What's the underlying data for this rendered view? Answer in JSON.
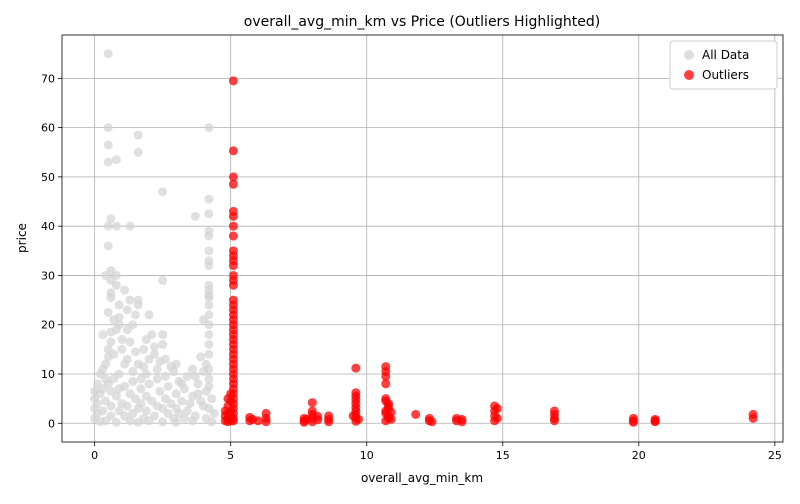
{
  "chart_data": {
    "type": "scatter",
    "title": "overall_avg_min_km vs Price (Outliers Highlighted)",
    "xlabel": "overall_avg_min_km",
    "ylabel": "price",
    "xlim": [
      -1.2,
      25.3
    ],
    "ylim": [
      -3.8,
      78.8
    ],
    "xticks": [
      0,
      5,
      10,
      15,
      20,
      25
    ],
    "yticks": [
      0,
      10,
      20,
      30,
      40,
      50,
      60,
      70
    ],
    "grid": true,
    "legend_position": "top-right",
    "series": [
      {
        "name": "All Data",
        "color": "#d3d3d3",
        "points": [
          [
            0.5,
            75
          ],
          [
            0.5,
            60
          ],
          [
            0.5,
            56.5
          ],
          [
            0.5,
            53
          ],
          [
            0.8,
            53.5
          ],
          [
            1.6,
            58.5
          ],
          [
            1.6,
            55
          ],
          [
            4.2,
            60
          ],
          [
            2.5,
            47
          ],
          [
            4.2,
            45.5
          ],
          [
            4.2,
            42.5
          ],
          [
            3.7,
            42
          ],
          [
            0.6,
            41.5
          ],
          [
            0.5,
            40
          ],
          [
            0.8,
            40
          ],
          [
            1.3,
            40
          ],
          [
            4.2,
            39
          ],
          [
            4.2,
            38
          ],
          [
            0.5,
            36
          ],
          [
            4.2,
            35
          ],
          [
            4.2,
            33
          ],
          [
            4.2,
            32
          ],
          [
            0.6,
            31
          ],
          [
            0.8,
            30
          ],
          [
            0.4,
            30
          ],
          [
            0.6,
            29
          ],
          [
            2.5,
            29
          ],
          [
            0.8,
            28
          ],
          [
            4.2,
            28
          ],
          [
            4.2,
            27
          ],
          [
            1.1,
            27
          ],
          [
            0.6,
            26.5
          ],
          [
            0.6,
            25.5
          ],
          [
            1.3,
            25
          ],
          [
            4.2,
            25.5
          ],
          [
            1.6,
            25
          ],
          [
            1.6,
            24
          ],
          [
            0.9,
            24
          ],
          [
            1.2,
            23
          ],
          [
            0.5,
            22.5
          ],
          [
            2.0,
            22
          ],
          [
            1.5,
            22
          ],
          [
            4.2,
            22
          ],
          [
            4.0,
            21
          ],
          [
            0.7,
            21
          ],
          [
            0.9,
            20
          ],
          [
            1.4,
            20
          ],
          [
            0.8,
            19
          ],
          [
            0.3,
            18
          ],
          [
            2.1,
            18
          ],
          [
            2.5,
            18
          ],
          [
            4.2,
            18
          ],
          [
            0.6,
            16.5
          ],
          [
            1.3,
            16.5
          ],
          [
            2.5,
            16
          ],
          [
            4.2,
            16
          ],
          [
            1.0,
            15
          ],
          [
            1.8,
            15
          ],
          [
            2.2,
            14
          ],
          [
            0.5,
            13.5
          ],
          [
            3.9,
            13.5
          ],
          [
            4.2,
            14
          ],
          [
            1.2,
            13
          ],
          [
            2.6,
            13
          ],
          [
            0.4,
            12
          ],
          [
            1.6,
            12
          ],
          [
            2.8,
            11.5
          ],
          [
            3.6,
            11
          ],
          [
            4.0,
            10.5
          ],
          [
            0.2,
            10
          ],
          [
            0.9,
            10
          ],
          [
            1.9,
            10
          ],
          [
            3.4,
            9.5
          ],
          [
            4.2,
            9
          ],
          [
            0.7,
            9
          ],
          [
            2.3,
            9
          ],
          [
            1.4,
            8.5
          ],
          [
            3.1,
            8.5
          ],
          [
            0.1,
            8
          ],
          [
            0.5,
            8
          ],
          [
            2.0,
            8
          ],
          [
            3.8,
            8
          ],
          [
            4.2,
            7.5
          ],
          [
            1.1,
            7.5
          ],
          [
            2.7,
            7.5
          ],
          [
            0.3,
            7
          ],
          [
            1.7,
            7
          ],
          [
            3.3,
            7
          ],
          [
            0.0,
            6.5
          ],
          [
            0.6,
            6.5
          ],
          [
            2.4,
            6.5
          ],
          [
            4.1,
            6.5
          ],
          [
            1.3,
            6
          ],
          [
            3.0,
            6
          ],
          [
            0.2,
            6
          ],
          [
            1.9,
            5.5
          ],
          [
            3.6,
            5.5
          ],
          [
            0.8,
            5.5
          ],
          [
            2.6,
            5
          ],
          [
            4.3,
            5
          ],
          [
            0.0,
            5
          ],
          [
            1.5,
            5
          ],
          [
            3.2,
            4.5
          ],
          [
            0.4,
            4.5
          ],
          [
            2.1,
            4.5
          ],
          [
            3.9,
            4.5
          ],
          [
            1.0,
            4
          ],
          [
            2.8,
            4
          ],
          [
            0.1,
            4
          ],
          [
            1.7,
            4
          ],
          [
            3.5,
            4
          ],
          [
            0.6,
            3.5
          ],
          [
            2.3,
            3.5
          ],
          [
            4.0,
            3.5
          ],
          [
            1.2,
            3.5
          ],
          [
            3.0,
            3
          ],
          [
            0.0,
            3
          ],
          [
            1.6,
            3
          ],
          [
            2.5,
            3
          ],
          [
            4.2,
            3
          ],
          [
            0.3,
            2.5
          ],
          [
            1.9,
            2.5
          ],
          [
            3.4,
            2.5
          ],
          [
            0.9,
            2.5
          ],
          [
            2.7,
            2
          ],
          [
            4.4,
            2
          ],
          [
            0.1,
            2
          ],
          [
            1.4,
            2
          ],
          [
            3.1,
            2
          ],
          [
            0.6,
            1.5
          ],
          [
            2.2,
            1.5
          ],
          [
            3.7,
            1.5
          ],
          [
            1.1,
            1.5
          ],
          [
            2.9,
            1
          ],
          [
            0.0,
            1
          ],
          [
            1.8,
            1
          ],
          [
            3.3,
            1
          ],
          [
            4.1,
            1
          ],
          [
            0.4,
            0.5
          ],
          [
            2.0,
            0.5
          ],
          [
            3.6,
            0.5
          ],
          [
            1.3,
            0.5
          ],
          [
            2.5,
            0.3
          ],
          [
            0.2,
            0.3
          ],
          [
            4.3,
            0.3
          ],
          [
            1.6,
            0.2
          ],
          [
            3.0,
            0.2
          ],
          [
            0.8,
            0.2
          ],
          [
            2.4,
            12.5
          ],
          [
            1.8,
            11.5
          ],
          [
            0.3,
            11
          ],
          [
            2.9,
            10.5
          ],
          [
            1.1,
            12
          ],
          [
            3.7,
            9.5
          ],
          [
            0.7,
            14
          ],
          [
            1.5,
            14.5
          ],
          [
            2.2,
            15.5
          ],
          [
            0.5,
            15
          ],
          [
            1.0,
            17
          ],
          [
            1.9,
            17
          ],
          [
            0.9,
            21.5
          ],
          [
            1.2,
            19
          ],
          [
            0.6,
            18.5
          ],
          [
            2.0,
            13
          ],
          [
            3.2,
            8
          ],
          [
            2.6,
            9.5
          ],
          [
            1.4,
            10.5
          ],
          [
            0.4,
            9
          ],
          [
            3.0,
            12
          ],
          [
            4.1,
            12
          ],
          [
            2.3,
            11
          ],
          [
            1.7,
            9
          ],
          [
            0.9,
            7
          ],
          [
            3.8,
            6
          ],
          [
            4.2,
            11
          ],
          [
            4.2,
            20
          ],
          [
            4.2,
            24
          ],
          [
            4.2,
            26
          ]
        ]
      },
      {
        "name": "Outliers",
        "color": "#ff0000",
        "points": [
          [
            5.1,
            69.5
          ],
          [
            5.1,
            55.3
          ],
          [
            5.1,
            50
          ],
          [
            5.1,
            48.5
          ],
          [
            5.1,
            43
          ],
          [
            5.1,
            42
          ],
          [
            5.1,
            40
          ],
          [
            5.1,
            38
          ],
          [
            5.1,
            35
          ],
          [
            5.1,
            34
          ],
          [
            5.1,
            33
          ],
          [
            5.1,
            32
          ],
          [
            5.1,
            30
          ],
          [
            5.1,
            29
          ],
          [
            5.1,
            28
          ],
          [
            5.1,
            25
          ],
          [
            5.1,
            24
          ],
          [
            5.1,
            23
          ],
          [
            5.1,
            22
          ],
          [
            5.1,
            21
          ],
          [
            5.1,
            20
          ],
          [
            5.1,
            19
          ],
          [
            5.1,
            18
          ],
          [
            5.1,
            17
          ],
          [
            5.1,
            16
          ],
          [
            5.1,
            15
          ],
          [
            5.1,
            14
          ],
          [
            5.1,
            13
          ],
          [
            5.1,
            12
          ],
          [
            5.1,
            11
          ],
          [
            5.1,
            10
          ],
          [
            5.1,
            9
          ],
          [
            5.1,
            8
          ],
          [
            5.1,
            7
          ],
          [
            5.1,
            6
          ],
          [
            5.1,
            5
          ],
          [
            5.1,
            4
          ],
          [
            5.1,
            3
          ],
          [
            5.1,
            2
          ],
          [
            5.1,
            1
          ],
          [
            5.1,
            0.5
          ],
          [
            4.9,
            5
          ],
          [
            4.9,
            3.5
          ],
          [
            4.9,
            2
          ],
          [
            4.9,
            1
          ],
          [
            4.9,
            0.3
          ],
          [
            5.0,
            4.5
          ],
          [
            5.0,
            6
          ],
          [
            5.0,
            2.5
          ],
          [
            5.0,
            1.5
          ],
          [
            5.0,
            0.5
          ],
          [
            4.8,
            1.5
          ],
          [
            4.8,
            0.5
          ],
          [
            4.8,
            2.5
          ],
          [
            5.7,
            1.2
          ],
          [
            5.7,
            0.5
          ],
          [
            5.8,
            0.8
          ],
          [
            6.3,
            2
          ],
          [
            6.3,
            1
          ],
          [
            6.3,
            0.3
          ],
          [
            6.0,
            0.5
          ],
          [
            7.7,
            1
          ],
          [
            7.7,
            0.5
          ],
          [
            7.7,
            0.2
          ],
          [
            7.8,
            0.8
          ],
          [
            8.0,
            4.2
          ],
          [
            8.0,
            2.5
          ],
          [
            8.0,
            1.8
          ],
          [
            8.0,
            1
          ],
          [
            8.0,
            0.3
          ],
          [
            8.2,
            0.7
          ],
          [
            8.2,
            1.4
          ],
          [
            8.6,
            1.5
          ],
          [
            8.6,
            0.8
          ],
          [
            8.6,
            0.3
          ],
          [
            9.6,
            11.2
          ],
          [
            9.6,
            6.2
          ],
          [
            9.6,
            5.5
          ],
          [
            9.6,
            4.8
          ],
          [
            9.6,
            4
          ],
          [
            9.6,
            3.2
          ],
          [
            9.6,
            2.5
          ],
          [
            9.6,
            1.8
          ],
          [
            9.6,
            1
          ],
          [
            9.6,
            0.4
          ],
          [
            9.7,
            0.8
          ],
          [
            9.5,
            1.5
          ],
          [
            10.7,
            11.5
          ],
          [
            10.7,
            10.5
          ],
          [
            10.7,
            9.5
          ],
          [
            10.7,
            8
          ],
          [
            10.7,
            5
          ],
          [
            10.7,
            4.5
          ],
          [
            10.8,
            4
          ],
          [
            10.8,
            3.5
          ],
          [
            10.8,
            3
          ],
          [
            10.7,
            2.5
          ],
          [
            10.7,
            2
          ],
          [
            10.8,
            1.5
          ],
          [
            10.8,
            1
          ],
          [
            10.7,
            0.5
          ],
          [
            10.9,
            0.8
          ],
          [
            10.9,
            2.2
          ],
          [
            11.8,
            1.8
          ],
          [
            12.3,
            1
          ],
          [
            12.3,
            0.5
          ],
          [
            12.4,
            0.3
          ],
          [
            13.3,
            1
          ],
          [
            13.3,
            0.5
          ],
          [
            13.5,
            0.8
          ],
          [
            13.5,
            0.3
          ],
          [
            14.7,
            3.5
          ],
          [
            14.7,
            2.5
          ],
          [
            14.7,
            1.5
          ],
          [
            14.7,
            0.5
          ],
          [
            14.8,
            1
          ],
          [
            14.8,
            3
          ],
          [
            16.9,
            2.5
          ],
          [
            16.9,
            1.8
          ],
          [
            16.9,
            1
          ],
          [
            16.9,
            0.5
          ],
          [
            19.8,
            1
          ],
          [
            19.8,
            0.5
          ],
          [
            19.8,
            0.2
          ],
          [
            20.6,
            0.8
          ],
          [
            20.6,
            0.3
          ],
          [
            20.6,
            0.5
          ],
          [
            24.2,
            1.8
          ],
          [
            24.2,
            1
          ]
        ]
      }
    ]
  }
}
